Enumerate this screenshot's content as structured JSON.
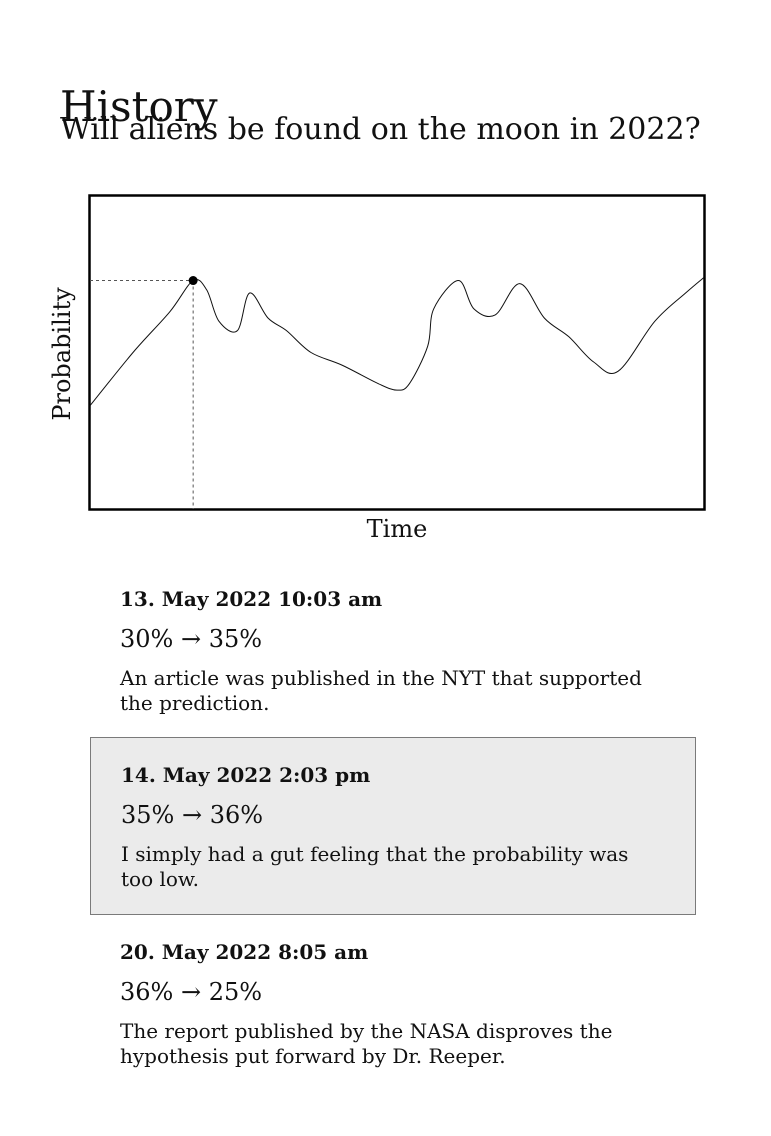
{
  "page": {
    "title": "History",
    "question": "Will aliens be found on the moon in 2022?"
  },
  "chart_data": {
    "type": "line",
    "xlabel": "Time",
    "ylabel": "Probability",
    "grid": false,
    "x": [
      0,
      0.07,
      0.13,
      0.168,
      0.19,
      0.21,
      0.24,
      0.26,
      0.29,
      0.32,
      0.36,
      0.41,
      0.47,
      0.5,
      0.52,
      0.55,
      0.56,
      0.6,
      0.625,
      0.66,
      0.7,
      0.74,
      0.78,
      0.82,
      0.86,
      0.92,
      0.97,
      1.0
    ],
    "y": [
      0.33,
      0.5,
      0.63,
      0.73,
      0.7,
      0.6,
      0.57,
      0.69,
      0.61,
      0.57,
      0.5,
      0.46,
      0.4,
      0.38,
      0.4,
      0.52,
      0.64,
      0.73,
      0.64,
      0.62,
      0.72,
      0.61,
      0.55,
      0.47,
      0.44,
      0.6,
      0.69,
      0.74
    ],
    "ylim": [
      0,
      1
    ],
    "highlight_index": 3
  },
  "entries": [
    {
      "date": "13. May 2022 10:03 am",
      "change": "30% → 35%",
      "description": "An article was published in the NYT that supported the prediction.",
      "selected": false
    },
    {
      "date": "14. May 2022 2:03 pm",
      "change": "35% → 36%",
      "description": "I simply had a gut feeling that the probability was too low.",
      "selected": true
    },
    {
      "date": "20. May 2022 8:05 am",
      "change": "36% → 25%",
      "description": "The report published by the NASA disproves the hypothesis put forward by Dr. Reeper.",
      "selected": false
    }
  ]
}
